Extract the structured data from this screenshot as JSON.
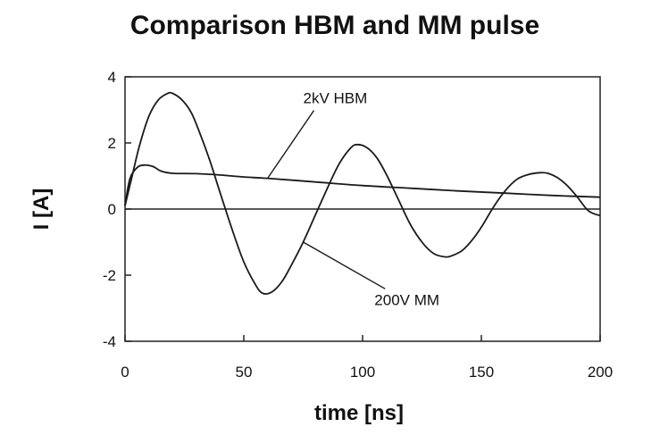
{
  "chart_data": {
    "type": "line",
    "title": "Comparison HBM and MM pulse",
    "xlabel": "time [ns]",
    "ylabel": "I  [A]",
    "xlim": [
      0,
      200
    ],
    "ylim": [
      -4,
      4
    ],
    "x_ticks": [
      0,
      50,
      100,
      150,
      200
    ],
    "y_ticks": [
      -4,
      -2,
      0,
      2,
      4
    ],
    "x_tick_labels": [
      "0",
      "50",
      "100",
      "150",
      "200"
    ],
    "y_tick_labels": [
      "-4",
      "-2",
      "0",
      "2",
      "4"
    ],
    "grid": false,
    "zero_line": true,
    "series": [
      {
        "name": "2kV HBM",
        "x": [
          0,
          2,
          5,
          8,
          12,
          15,
          20,
          30,
          40,
          50,
          60,
          80,
          100,
          120,
          140,
          160,
          180,
          200
        ],
        "y": [
          0.1,
          0.9,
          1.25,
          1.33,
          1.28,
          1.15,
          1.08,
          1.07,
          1.03,
          0.97,
          0.93,
          0.82,
          0.71,
          0.63,
          0.55,
          0.48,
          0.41,
          0.36
        ]
      },
      {
        "name": "200V MM",
        "x": [
          0,
          3,
          6,
          10,
          14,
          18,
          20,
          24,
          28,
          32,
          36,
          40,
          45,
          50,
          55,
          58,
          62,
          66,
          70,
          75,
          80,
          85,
          90,
          95,
          98,
          102,
          106,
          110,
          115,
          120,
          125,
          130,
          135,
          138,
          142,
          146,
          150,
          155,
          160,
          165,
          170,
          175,
          178,
          182,
          186,
          190,
          195,
          200
        ],
        "y": [
          0.1,
          1.0,
          1.9,
          2.8,
          3.3,
          3.5,
          3.5,
          3.3,
          2.9,
          2.2,
          1.4,
          0.5,
          -0.6,
          -1.6,
          -2.3,
          -2.55,
          -2.5,
          -2.2,
          -1.7,
          -1.0,
          -0.2,
          0.6,
          1.35,
          1.85,
          1.95,
          1.85,
          1.55,
          1.05,
          0.3,
          -0.45,
          -1.0,
          -1.35,
          -1.45,
          -1.4,
          -1.25,
          -0.95,
          -0.55,
          0.05,
          0.55,
          0.9,
          1.05,
          1.1,
          1.08,
          0.95,
          0.72,
          0.4,
          -0.05,
          -0.2
        ]
      }
    ],
    "annotations": [
      {
        "text": "2kV HBM",
        "series": "2kV HBM",
        "at": [
          60,
          0.93
        ],
        "label_at": [
          75,
          3.2
        ]
      },
      {
        "text": "200V MM",
        "series": "200V MM",
        "at": [
          75,
          -1.0
        ],
        "label_at": [
          105,
          -2.9
        ]
      }
    ]
  }
}
